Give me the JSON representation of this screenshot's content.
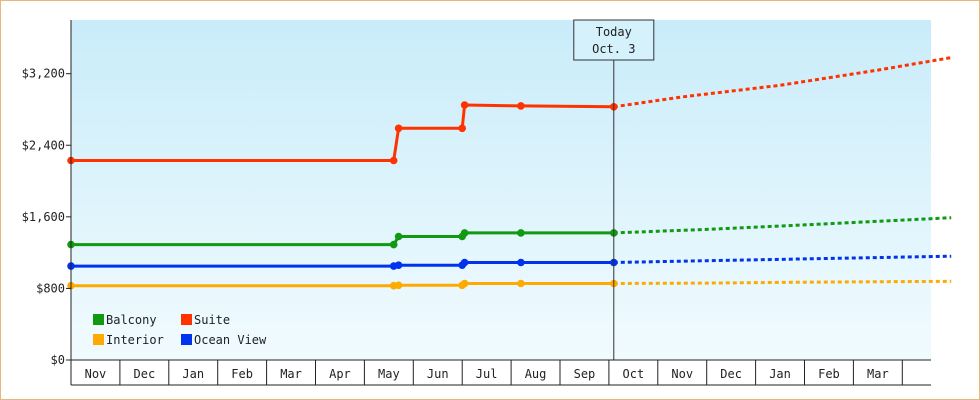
{
  "chart_data": {
    "type": "line",
    "title": "",
    "xlabel": "",
    "ylabel": "",
    "ylim": [
      0,
      3800
    ],
    "y_ticks": [
      {
        "value": 0,
        "label": "$0"
      },
      {
        "value": 800,
        "label": "$800"
      },
      {
        "value": 1600,
        "label": "$1,600"
      },
      {
        "value": 2400,
        "label": "$2,400"
      },
      {
        "value": 3200,
        "label": "$3,200"
      }
    ],
    "x_months": [
      "Nov",
      "Dec",
      "Jan",
      "Feb",
      "Mar",
      "Apr",
      "May",
      "Jun",
      "Jul",
      "Aug",
      "Sep",
      "Oct",
      "Nov",
      "Dec",
      "Jan",
      "Feb",
      "Mar"
    ],
    "today_marker": {
      "line1": "Today",
      "line2": "Oct. 3",
      "x": 11.1
    },
    "legend_position": "bottom-left",
    "grid": false,
    "series": [
      {
        "name": "Suite",
        "color": "#ff3300",
        "points": [
          [
            0.0,
            2230
          ],
          [
            6.6,
            2230
          ],
          [
            6.7,
            2590
          ],
          [
            8.0,
            2590
          ],
          [
            8.05,
            2850
          ],
          [
            9.2,
            2840
          ],
          [
            11.1,
            2830
          ]
        ],
        "projection": [
          [
            11.1,
            2830
          ],
          [
            12.5,
            2940
          ],
          [
            14.5,
            3070
          ],
          [
            16.5,
            3240
          ],
          [
            18.0,
            3380
          ]
        ]
      },
      {
        "name": "Balcony",
        "color": "#119911",
        "points": [
          [
            0.0,
            1290
          ],
          [
            6.6,
            1290
          ],
          [
            6.7,
            1380
          ],
          [
            8.0,
            1380
          ],
          [
            8.05,
            1420
          ],
          [
            9.2,
            1420
          ],
          [
            11.1,
            1420
          ]
        ],
        "projection": [
          [
            11.1,
            1420
          ],
          [
            13.0,
            1460
          ],
          [
            15.0,
            1510
          ],
          [
            18.0,
            1590
          ]
        ]
      },
      {
        "name": "Ocean View",
        "color": "#0033ee",
        "points": [
          [
            0.0,
            1050
          ],
          [
            6.6,
            1050
          ],
          [
            6.7,
            1060
          ],
          [
            8.0,
            1060
          ],
          [
            8.05,
            1090
          ],
          [
            9.2,
            1090
          ],
          [
            11.1,
            1090
          ]
        ],
        "projection": [
          [
            11.1,
            1090
          ],
          [
            13.0,
            1110
          ],
          [
            15.0,
            1130
          ],
          [
            18.0,
            1160
          ]
        ]
      },
      {
        "name": "Interior",
        "color": "#ffaa00",
        "points": [
          [
            0.0,
            830
          ],
          [
            6.6,
            830
          ],
          [
            6.7,
            835
          ],
          [
            8.0,
            835
          ],
          [
            8.05,
            855
          ],
          [
            9.2,
            855
          ],
          [
            11.1,
            855
          ]
        ],
        "projection": [
          [
            11.1,
            855
          ],
          [
            13.0,
            860
          ],
          [
            15.0,
            870
          ],
          [
            18.0,
            880
          ]
        ]
      }
    ],
    "legend_order": [
      "Balcony",
      "Suite",
      "Interior",
      "Ocean View"
    ]
  }
}
